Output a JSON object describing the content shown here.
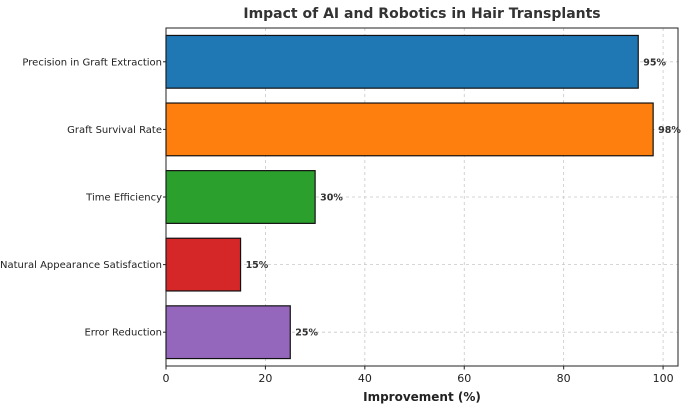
{
  "chart_data": {
    "type": "bar",
    "orientation": "horizontal",
    "title": "Impact of AI and Robotics in Hair Transplants",
    "xlabel": "Improvement (%)",
    "ylabel": "",
    "xlim": [
      0,
      103
    ],
    "xticks": [
      0,
      20,
      40,
      60,
      80,
      100
    ],
    "grid": true,
    "categories": [
      "Precision in Graft Extraction",
      "Graft Survival Rate",
      "Time Efficiency",
      "Natural Appearance Satisfaction",
      "Error Reduction"
    ],
    "values": [
      95,
      98,
      30,
      15,
      25
    ],
    "data_labels": [
      "95%",
      "98%",
      "30%",
      "15%",
      "25%"
    ],
    "colors": [
      "#1f77b4",
      "#ff7f0e",
      "#2ca02c",
      "#d62728",
      "#9467bd"
    ]
  }
}
